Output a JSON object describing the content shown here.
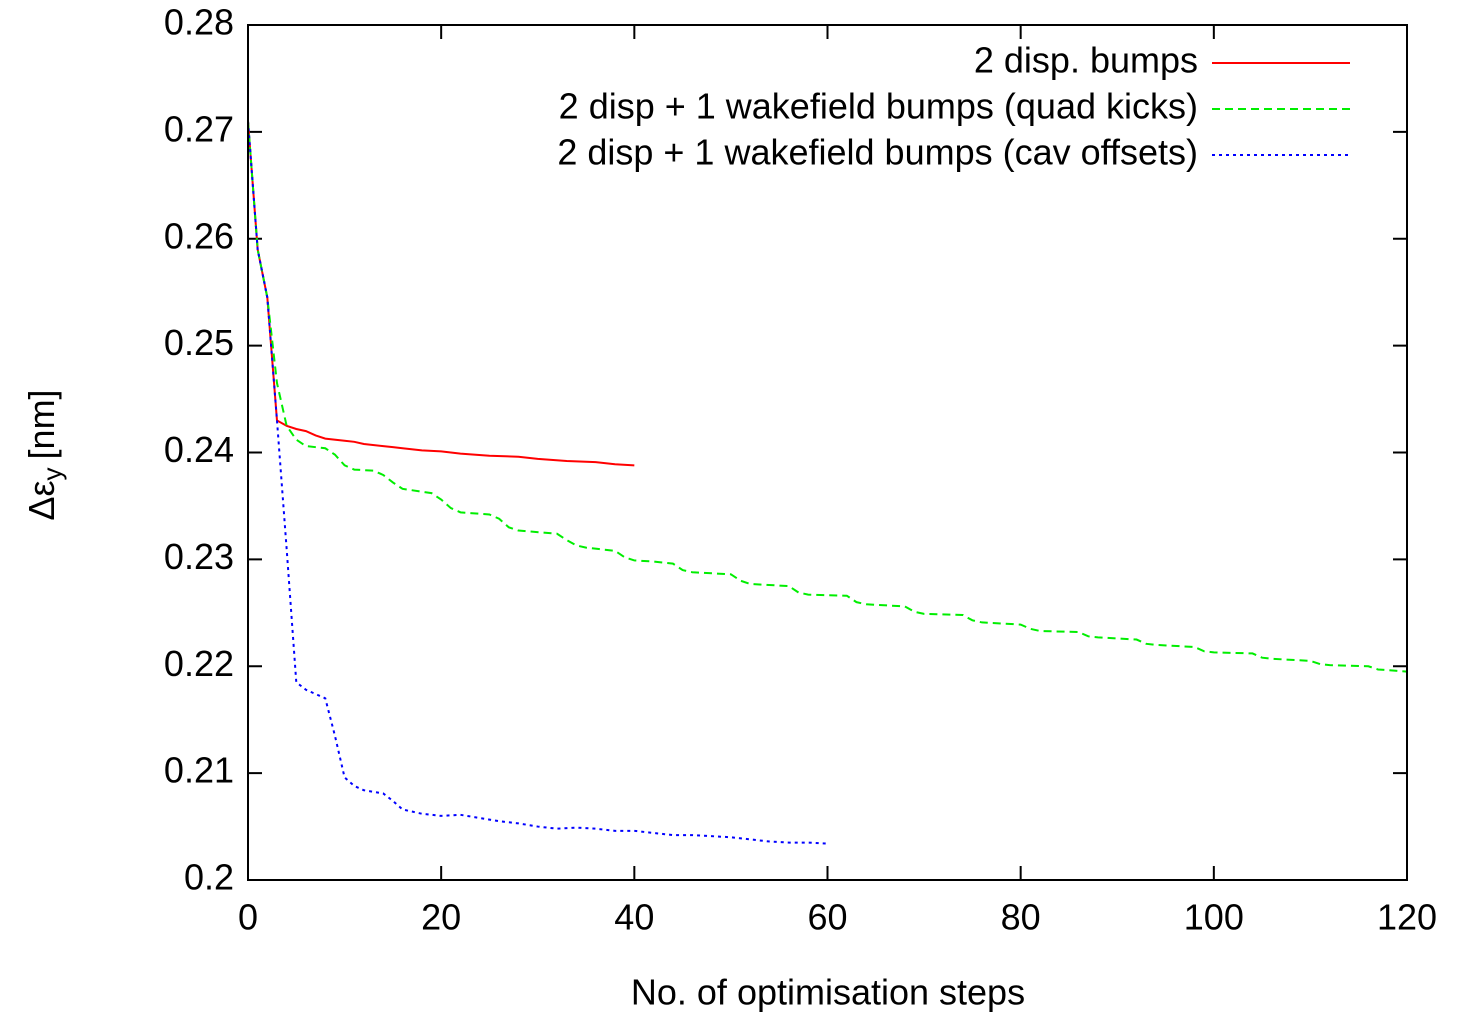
{
  "chart_data": {
    "type": "line",
    "xlabel": "No. of optimisation steps",
    "ylabel": {
      "symbol": "Δε",
      "subscript": "y",
      "unit": "[nm]"
    },
    "xlim": [
      0,
      120
    ],
    "ylim": [
      0.2,
      0.28
    ],
    "xticks": [
      0,
      20,
      40,
      60,
      80,
      100,
      120
    ],
    "yticks": [
      0.2,
      0.21,
      0.22,
      0.23,
      0.24,
      0.25,
      0.26,
      0.27,
      0.28
    ],
    "legend": "top-right",
    "series": [
      {
        "name": "2 disp. bumps",
        "color": "#ff0000",
        "dash": "solid",
        "x": [
          0,
          1,
          2,
          3,
          4,
          5,
          6,
          7,
          8,
          10,
          11,
          12,
          14,
          15,
          16,
          18,
          20,
          22,
          25,
          28,
          30,
          33,
          36,
          38,
          40
        ],
        "values": [
          0.271,
          0.259,
          0.2545,
          0.243,
          0.2425,
          0.2422,
          0.242,
          0.2416,
          0.2413,
          0.2411,
          0.241,
          0.2408,
          0.2406,
          0.2405,
          0.2404,
          0.2402,
          0.2401,
          0.2399,
          0.2397,
          0.2396,
          0.2394,
          0.2392,
          0.2391,
          0.2389,
          0.2388
        ]
      },
      {
        "name": "2 disp + 1 wakefield bumps (quad kicks)",
        "color": "#00ee00",
        "dash": "dashed",
        "x": [
          0,
          1,
          2,
          3,
          4,
          5,
          6,
          8,
          9,
          10,
          11,
          13,
          14,
          15,
          16,
          19,
          20,
          21,
          22,
          25,
          26,
          27,
          28,
          32,
          33,
          34,
          35,
          38,
          39,
          40,
          42,
          44,
          45,
          46,
          50,
          51,
          52,
          56,
          57,
          58,
          62,
          63,
          64,
          68,
          69,
          70,
          74,
          75,
          76,
          80,
          81,
          82,
          86,
          87,
          88,
          92,
          93,
          94,
          98,
          99,
          100,
          104,
          105,
          106,
          110,
          111,
          112,
          116,
          117,
          120
        ],
        "values": [
          0.271,
          0.259,
          0.2545,
          0.2465,
          0.2425,
          0.2412,
          0.2406,
          0.2404,
          0.2398,
          0.2388,
          0.2384,
          0.2383,
          0.2379,
          0.2372,
          0.2366,
          0.2362,
          0.2356,
          0.2348,
          0.2344,
          0.2342,
          0.2338,
          0.233,
          0.2327,
          0.2324,
          0.2318,
          0.2313,
          0.2311,
          0.2308,
          0.2302,
          0.2299,
          0.2298,
          0.2296,
          0.229,
          0.2288,
          0.2286,
          0.228,
          0.2277,
          0.2275,
          0.2269,
          0.2267,
          0.2266,
          0.226,
          0.2258,
          0.2256,
          0.2251,
          0.2249,
          0.2248,
          0.2243,
          0.2241,
          0.2239,
          0.2235,
          0.2233,
          0.2232,
          0.2228,
          0.2227,
          0.2225,
          0.2221,
          0.222,
          0.2218,
          0.2214,
          0.2213,
          0.2212,
          0.2208,
          0.2207,
          0.2205,
          0.2202,
          0.2201,
          0.22,
          0.2197,
          0.2195
        ]
      },
      {
        "name": "2 disp + 1 wakefield bumps (cav offsets)",
        "color": "#0000ff",
        "dash": "dotted",
        "x": [
          0,
          1,
          2,
          3,
          4,
          5,
          6,
          7,
          8,
          9,
          10,
          11,
          12,
          14,
          15,
          16,
          18,
          20,
          22,
          24,
          26,
          28,
          30,
          32,
          34,
          36,
          38,
          40,
          42,
          44,
          46,
          48,
          50,
          52,
          54,
          56,
          58,
          60
        ],
        "values": [
          0.271,
          0.259,
          0.2545,
          0.243,
          0.231,
          0.2185,
          0.2178,
          0.2174,
          0.217,
          0.2135,
          0.2096,
          0.2088,
          0.2084,
          0.2081,
          0.2074,
          0.2066,
          0.2062,
          0.206,
          0.2061,
          0.2058,
          0.2055,
          0.2053,
          0.205,
          0.2048,
          0.2049,
          0.2048,
          0.2046,
          0.2046,
          0.2044,
          0.2042,
          0.2042,
          0.2041,
          0.204,
          0.2038,
          0.2036,
          0.2035,
          0.2035,
          0.2034
        ]
      }
    ]
  }
}
